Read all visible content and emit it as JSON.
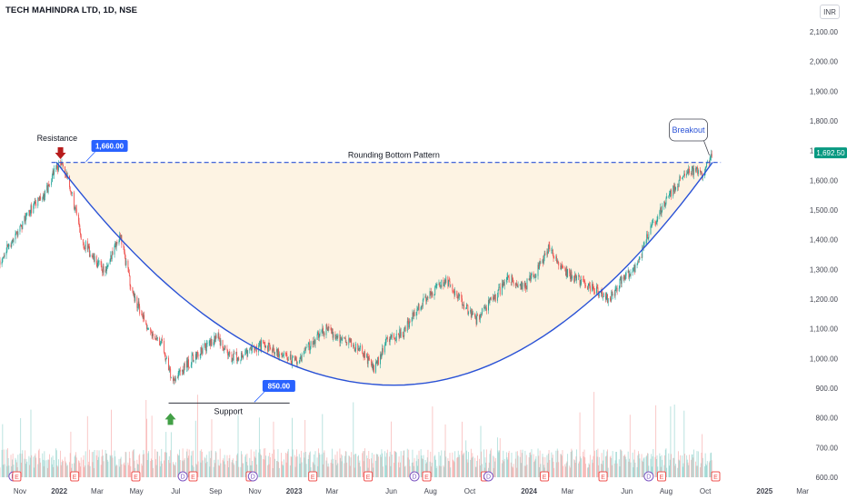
{
  "header": {
    "symbol": "TECH MAHINDRA LTD, 1D, NSE",
    "currency": "INR"
  },
  "colors": {
    "up": "#26a69a",
    "down": "#ef5350",
    "curve": "#2a52d6",
    "fill": "#fdf3e3",
    "label_bg": "#2962ff",
    "price_tag": "#089981",
    "arrow_down": "#b71c1c",
    "arrow_up": "#43a047"
  },
  "chart_data": {
    "type": "candlestick",
    "title": "",
    "y_axis": {
      "min": 600,
      "max": 2100,
      "ticks": [
        600,
        700,
        800,
        900,
        1000,
        1100,
        1200,
        1300,
        1400,
        1500,
        1600,
        1700,
        1800,
        1900,
        2000,
        2100
      ],
      "tick_labels": [
        "600.00",
        "700.00",
        "800.00",
        "900.00",
        "1,000.00",
        "1,100.00",
        "1,200.00",
        "1,300.00",
        "1,400.00",
        "1,500.00",
        "1,600.00",
        "1,700.00",
        "1,800.00",
        "1,900.00",
        "2,000.00",
        "2,100.00"
      ]
    },
    "x_axis": {
      "start": "2021-10-01",
      "end": "2025-03-15",
      "ticks": [
        {
          "label": "Nov",
          "date": "2021-11-01"
        },
        {
          "label": "2022",
          "date": "2022-01-01",
          "bold": true
        },
        {
          "label": "Mar",
          "date": "2022-03-01"
        },
        {
          "label": "May",
          "date": "2022-05-01"
        },
        {
          "label": "Jul",
          "date": "2022-07-01"
        },
        {
          "label": "Sep",
          "date": "2022-09-01"
        },
        {
          "label": "Nov",
          "date": "2022-11-01"
        },
        {
          "label": "2023",
          "date": "2023-01-01",
          "bold": true
        },
        {
          "label": "Mar",
          "date": "2023-03-01"
        },
        {
          "label": "Jun",
          "date": "2023-06-01"
        },
        {
          "label": "Aug",
          "date": "2023-08-01"
        },
        {
          "label": "Oct",
          "date": "2023-10-01"
        },
        {
          "label": "2024",
          "date": "2024-01-01",
          "bold": true
        },
        {
          "label": "Mar",
          "date": "2024-03-01"
        },
        {
          "label": "Jun",
          "date": "2024-06-01"
        },
        {
          "label": "Aug",
          "date": "2024-08-01"
        },
        {
          "label": "Oct",
          "date": "2024-10-01"
        },
        {
          "label": "2025",
          "date": "2025-01-01",
          "bold": true
        },
        {
          "label": "Mar",
          "date": "2025-03-01"
        }
      ]
    },
    "price_path": [
      {
        "date": "2021-10-01",
        "price": 1330
      },
      {
        "date": "2021-10-15",
        "price": 1380
      },
      {
        "date": "2021-11-01",
        "price": 1440
      },
      {
        "date": "2021-11-20",
        "price": 1510
      },
      {
        "date": "2021-12-10",
        "price": 1550
      },
      {
        "date": "2021-12-25",
        "price": 1640
      },
      {
        "date": "2022-01-05",
        "price": 1655
      },
      {
        "date": "2022-01-20",
        "price": 1560
      },
      {
        "date": "2022-02-05",
        "price": 1400
      },
      {
        "date": "2022-02-25",
        "price": 1330
      },
      {
        "date": "2022-03-15",
        "price": 1290
      },
      {
        "date": "2022-04-05",
        "price": 1420
      },
      {
        "date": "2022-04-25",
        "price": 1220
      },
      {
        "date": "2022-05-20",
        "price": 1100
      },
      {
        "date": "2022-06-10",
        "price": 1050
      },
      {
        "date": "2022-06-25",
        "price": 930
      },
      {
        "date": "2022-07-10",
        "price": 960
      },
      {
        "date": "2022-08-10",
        "price": 1030
      },
      {
        "date": "2022-09-05",
        "price": 1070
      },
      {
        "date": "2022-09-25",
        "price": 1000
      },
      {
        "date": "2022-10-20",
        "price": 1020
      },
      {
        "date": "2022-11-15",
        "price": 1050
      },
      {
        "date": "2022-12-10",
        "price": 1010
      },
      {
        "date": "2023-01-05",
        "price": 990
      },
      {
        "date": "2023-02-01",
        "price": 1060
      },
      {
        "date": "2023-02-20",
        "price": 1100
      },
      {
        "date": "2023-03-20",
        "price": 1060
      },
      {
        "date": "2023-04-15",
        "price": 1030
      },
      {
        "date": "2023-05-05",
        "price": 960
      },
      {
        "date": "2023-05-25",
        "price": 1060
      },
      {
        "date": "2023-06-20",
        "price": 1090
      },
      {
        "date": "2023-07-10",
        "price": 1160
      },
      {
        "date": "2023-08-01",
        "price": 1220
      },
      {
        "date": "2023-08-25",
        "price": 1260
      },
      {
        "date": "2023-09-15",
        "price": 1200
      },
      {
        "date": "2023-10-10",
        "price": 1130
      },
      {
        "date": "2023-10-30",
        "price": 1180
      },
      {
        "date": "2023-12-01",
        "price": 1270
      },
      {
        "date": "2023-12-25",
        "price": 1240
      },
      {
        "date": "2024-01-15",
        "price": 1300
      },
      {
        "date": "2024-02-01",
        "price": 1370
      },
      {
        "date": "2024-02-20",
        "price": 1300
      },
      {
        "date": "2024-03-20",
        "price": 1260
      },
      {
        "date": "2024-04-15",
        "price": 1230
      },
      {
        "date": "2024-05-05",
        "price": 1200
      },
      {
        "date": "2024-05-25",
        "price": 1270
      },
      {
        "date": "2024-06-15",
        "price": 1300
      },
      {
        "date": "2024-07-05",
        "price": 1420
      },
      {
        "date": "2024-07-25",
        "price": 1500
      },
      {
        "date": "2024-08-15",
        "price": 1580
      },
      {
        "date": "2024-09-05",
        "price": 1640
      },
      {
        "date": "2024-09-25",
        "price": 1620
      },
      {
        "date": "2024-10-10",
        "price": 1680
      }
    ],
    "resistance": {
      "value": 1660,
      "label": "1,660.00",
      "text": "Resistance"
    },
    "support": {
      "value": 850,
      "label": "850.00",
      "text": "Support",
      "from": "2022-06-20",
      "to": "2022-12-25"
    },
    "pattern": {
      "label": "Rounding Bottom Pattern",
      "from": "2021-12-28",
      "to": "2024-10-12",
      "bottom_date": "2023-06-05",
      "bottom_price": 910
    },
    "breakout": {
      "label": "Breakout",
      "date": "2024-10-10"
    },
    "last_price": {
      "value": 1692.5,
      "label": "1,692.50"
    },
    "earnings_markers": [
      {
        "date": "2021-10-22",
        "type": "D"
      },
      {
        "date": "2021-10-27",
        "type": "E"
      },
      {
        "date": "2022-01-25",
        "type": "E"
      },
      {
        "date": "2022-04-30",
        "type": "E"
      },
      {
        "date": "2022-07-12",
        "type": "D"
      },
      {
        "date": "2022-07-28",
        "type": "E"
      },
      {
        "date": "2022-10-25",
        "type": "E"
      },
      {
        "date": "2022-10-29",
        "type": "D"
      },
      {
        "date": "2023-01-30",
        "type": "E"
      },
      {
        "date": "2023-04-26",
        "type": "E"
      },
      {
        "date": "2023-07-07",
        "type": "D"
      },
      {
        "date": "2023-07-26",
        "type": "E"
      },
      {
        "date": "2023-10-25",
        "type": "E"
      },
      {
        "date": "2023-10-30",
        "type": "D"
      },
      {
        "date": "2024-01-25",
        "type": "E"
      },
      {
        "date": "2024-04-25",
        "type": "E"
      },
      {
        "date": "2024-07-05",
        "type": "D"
      },
      {
        "date": "2024-07-25",
        "type": "E"
      },
      {
        "date": "2024-10-17",
        "type": "E"
      }
    ]
  }
}
